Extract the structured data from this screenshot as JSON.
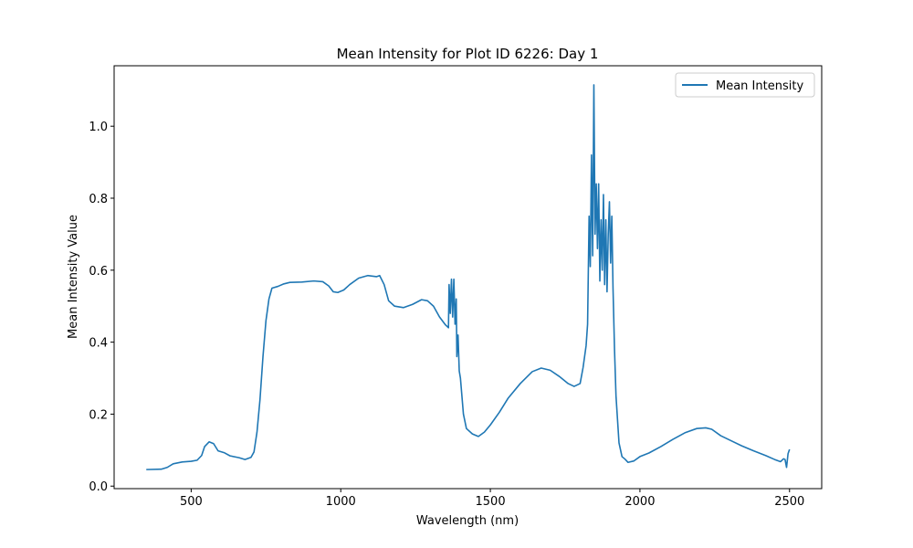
{
  "chart_data": {
    "type": "line",
    "title": "Mean Intensity for Plot ID 6226: Day 1",
    "x_label": "Wavelength (nm)",
    "y_label": "Mean Intensity Value",
    "legend_position": "upper right",
    "xlim": [
      242.5,
      2607.5
    ],
    "ylim": [
      -0.007,
      1.168
    ],
    "xticks": [
      500,
      1000,
      1500,
      2000,
      2500
    ],
    "yticks": [
      {
        "value": 0,
        "label": "0.0"
      },
      0.2,
      0.4,
      0.6,
      0.8,
      {
        "value": 1,
        "label": "1.0"
      }
    ],
    "x": [
      350,
      400,
      420,
      440,
      470,
      500,
      520,
      535,
      545,
      560,
      575,
      590,
      610,
      630,
      660,
      680,
      700,
      710,
      720,
      730,
      740,
      750,
      760,
      770,
      790,
      810,
      830,
      870,
      910,
      940,
      960,
      975,
      990,
      1010,
      1030,
      1060,
      1090,
      1120,
      1130,
      1145,
      1160,
      1180,
      1210,
      1240,
      1270,
      1290,
      1310,
      1330,
      1350,
      1360,
      1362,
      1366,
      1370,
      1374,
      1378,
      1382,
      1386,
      1388,
      1392,
      1396,
      1400,
      1410,
      1420,
      1440,
      1460,
      1480,
      1500,
      1530,
      1560,
      1600,
      1640,
      1670,
      1700,
      1730,
      1760,
      1780,
      1800,
      1810,
      1820,
      1825,
      1830,
      1834,
      1838,
      1842,
      1846,
      1850,
      1854,
      1858,
      1862,
      1866,
      1870,
      1874,
      1878,
      1882,
      1886,
      1890,
      1894,
      1898,
      1902,
      1906,
      1910,
      1915,
      1920,
      1930,
      1940,
      1950,
      1960,
      1980,
      2000,
      2030,
      2070,
      2110,
      2150,
      2190,
      2220,
      2240,
      2270,
      2300,
      2340,
      2380,
      2420,
      2450,
      2470,
      2480,
      2485,
      2490,
      2495,
      2500
    ],
    "series": [
      {
        "name": "Mean Intensity",
        "color": "#1f77b4",
        "values": [
          0.046,
          0.047,
          0.052,
          0.062,
          0.067,
          0.069,
          0.072,
          0.085,
          0.11,
          0.123,
          0.118,
          0.098,
          0.093,
          0.084,
          0.079,
          0.074,
          0.08,
          0.095,
          0.15,
          0.24,
          0.36,
          0.46,
          0.52,
          0.55,
          0.555,
          0.562,
          0.566,
          0.567,
          0.57,
          0.568,
          0.556,
          0.54,
          0.538,
          0.545,
          0.56,
          0.578,
          0.585,
          0.582,
          0.585,
          0.56,
          0.515,
          0.5,
          0.496,
          0.505,
          0.518,
          0.515,
          0.5,
          0.47,
          0.448,
          0.44,
          0.56,
          0.48,
          0.575,
          0.47,
          0.575,
          0.45,
          0.52,
          0.36,
          0.42,
          0.32,
          0.3,
          0.2,
          0.16,
          0.145,
          0.138,
          0.15,
          0.17,
          0.205,
          0.245,
          0.285,
          0.318,
          0.328,
          0.322,
          0.305,
          0.285,
          0.277,
          0.285,
          0.33,
          0.39,
          0.45,
          0.75,
          0.61,
          0.92,
          0.64,
          1.115,
          0.7,
          0.84,
          0.66,
          0.84,
          0.57,
          0.74,
          0.6,
          0.81,
          0.56,
          0.74,
          0.54,
          0.7,
          0.79,
          0.62,
          0.75,
          0.55,
          0.38,
          0.25,
          0.12,
          0.082,
          0.075,
          0.066,
          0.07,
          0.082,
          0.092,
          0.11,
          0.13,
          0.148,
          0.16,
          0.162,
          0.158,
          0.14,
          0.128,
          0.112,
          0.098,
          0.085,
          0.074,
          0.068,
          0.076,
          0.074,
          0.052,
          0.09,
          0.102
        ]
      }
    ]
  }
}
